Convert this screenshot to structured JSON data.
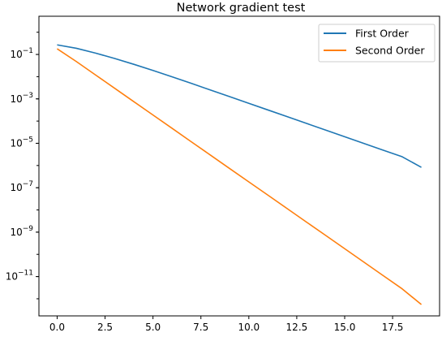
{
  "chart_data": {
    "type": "line",
    "title": "Network gradient test",
    "xlabel": "",
    "ylabel": "",
    "xlim": [
      -0.95,
      19.95
    ],
    "ylim_log10": [
      -12.77,
      0.72
    ],
    "yscale": "log",
    "grid": false,
    "legend_position": "top-right",
    "x": [
      0,
      1,
      2,
      3,
      4,
      5,
      6,
      7,
      8,
      9,
      10,
      11,
      12,
      13,
      14,
      15,
      16,
      17,
      18,
      19
    ],
    "xticks": [
      {
        "value": 0,
        "label": "0.0"
      },
      {
        "value": 2.5,
        "label": "2.5"
      },
      {
        "value": 5,
        "label": "5.0"
      },
      {
        "value": 7.5,
        "label": "7.5"
      },
      {
        "value": 10,
        "label": "10.0"
      },
      {
        "value": 12.5,
        "label": "12.5"
      },
      {
        "value": 15,
        "label": "15.0"
      },
      {
        "value": 17.5,
        "label": "17.5"
      }
    ],
    "yticks": [
      {
        "exp": -1,
        "base": "10",
        "sup": "−1"
      },
      {
        "exp": -3,
        "base": "10",
        "sup": "−3"
      },
      {
        "exp": -5,
        "base": "10",
        "sup": "−5"
      },
      {
        "exp": -7,
        "base": "10",
        "sup": "−7"
      },
      {
        "exp": -9,
        "base": "10",
        "sup": "−9"
      },
      {
        "exp": -11,
        "base": "10",
        "sup": "−11"
      }
    ],
    "series": [
      {
        "name": "First Order",
        "color": "#1f77b4",
        "values": [
          0.27,
          0.19,
          0.115,
          0.066,
          0.036,
          0.019,
          0.0098,
          0.005,
          0.0025,
          0.00126,
          0.00063,
          0.000316,
          0.000158,
          7.9e-05,
          3.96e-05,
          1.98e-05,
          9.9e-06,
          4.95e-06,
          2.48e-06,
          8.3e-07
        ]
      },
      {
        "name": "Second Order",
        "color": "#ff7f0e",
        "values": [
          0.18,
          0.048,
          0.012,
          0.003,
          0.00075,
          0.000188,
          4.7e-05,
          1.17e-05,
          2.93e-06,
          7.3e-07,
          1.83e-07,
          4.6e-08,
          1.15e-08,
          2.87e-09,
          7.2e-10,
          1.8e-10,
          4.5e-11,
          1.12e-11,
          2.8e-12,
          5.5e-13
        ]
      }
    ]
  }
}
